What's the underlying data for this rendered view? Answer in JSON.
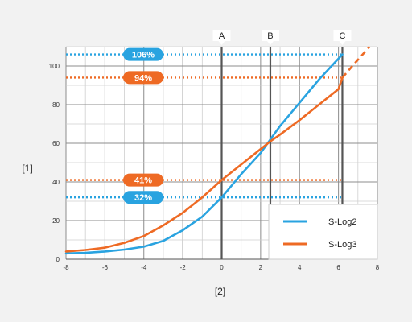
{
  "chart_data": {
    "type": "line",
    "xlabel": "[2]",
    "ylabel": "[1]",
    "xlim": [
      -8,
      8
    ],
    "ylim": [
      0,
      110
    ],
    "x_ticks": [
      -8,
      -6,
      -4,
      -2,
      0,
      2,
      4,
      6,
      8
    ],
    "y_ticks": [
      0,
      20,
      40,
      60,
      80,
      100
    ],
    "grid": true,
    "legend_position": "bottom-right",
    "series": [
      {
        "name": "S-Log2",
        "color": "#29a3e0",
        "points": [
          [
            -8,
            3
          ],
          [
            -7,
            3.3
          ],
          [
            -6,
            4
          ],
          [
            -5,
            5
          ],
          [
            -4,
            6.5
          ],
          [
            -3,
            9.5
          ],
          [
            -2,
            15
          ],
          [
            -1,
            22
          ],
          [
            0,
            32
          ],
          [
            1,
            44
          ],
          [
            2,
            55
          ],
          [
            2.5,
            62
          ],
          [
            3,
            69
          ],
          [
            4,
            81
          ],
          [
            5,
            93
          ],
          [
            6.2,
            106
          ]
        ]
      },
      {
        "name": "S-Log3",
        "color": "#ee6a24",
        "points": [
          [
            -8,
            4
          ],
          [
            -7,
            4.8
          ],
          [
            -6,
            6
          ],
          [
            -5,
            8.5
          ],
          [
            -4,
            12
          ],
          [
            -3,
            17.5
          ],
          [
            -2,
            24
          ],
          [
            -1,
            32
          ],
          [
            0,
            41
          ],
          [
            1,
            49
          ],
          [
            2,
            57
          ],
          [
            2.5,
            61
          ],
          [
            3,
            64.5
          ],
          [
            4,
            72
          ],
          [
            5,
            80
          ],
          [
            6,
            88
          ],
          [
            6.2,
            94
          ]
        ],
        "dashed_extension": [
          [
            6.2,
            94
          ],
          [
            6.8,
            101
          ],
          [
            7.6,
            110
          ]
        ]
      }
    ],
    "markers": [
      {
        "label": "A",
        "x": 0
      },
      {
        "label": "B",
        "x": 2.5
      },
      {
        "label": "C",
        "x": 6.2
      }
    ],
    "reference_lines": [
      {
        "label": "106%",
        "y": 106,
        "color": "#29a3e0"
      },
      {
        "label": "94%",
        "y": 94,
        "color": "#ee6a24"
      },
      {
        "label": "41%",
        "y": 41,
        "color": "#ee6a24"
      },
      {
        "label": "32%",
        "y": 32,
        "color": "#29a3e0"
      }
    ]
  }
}
